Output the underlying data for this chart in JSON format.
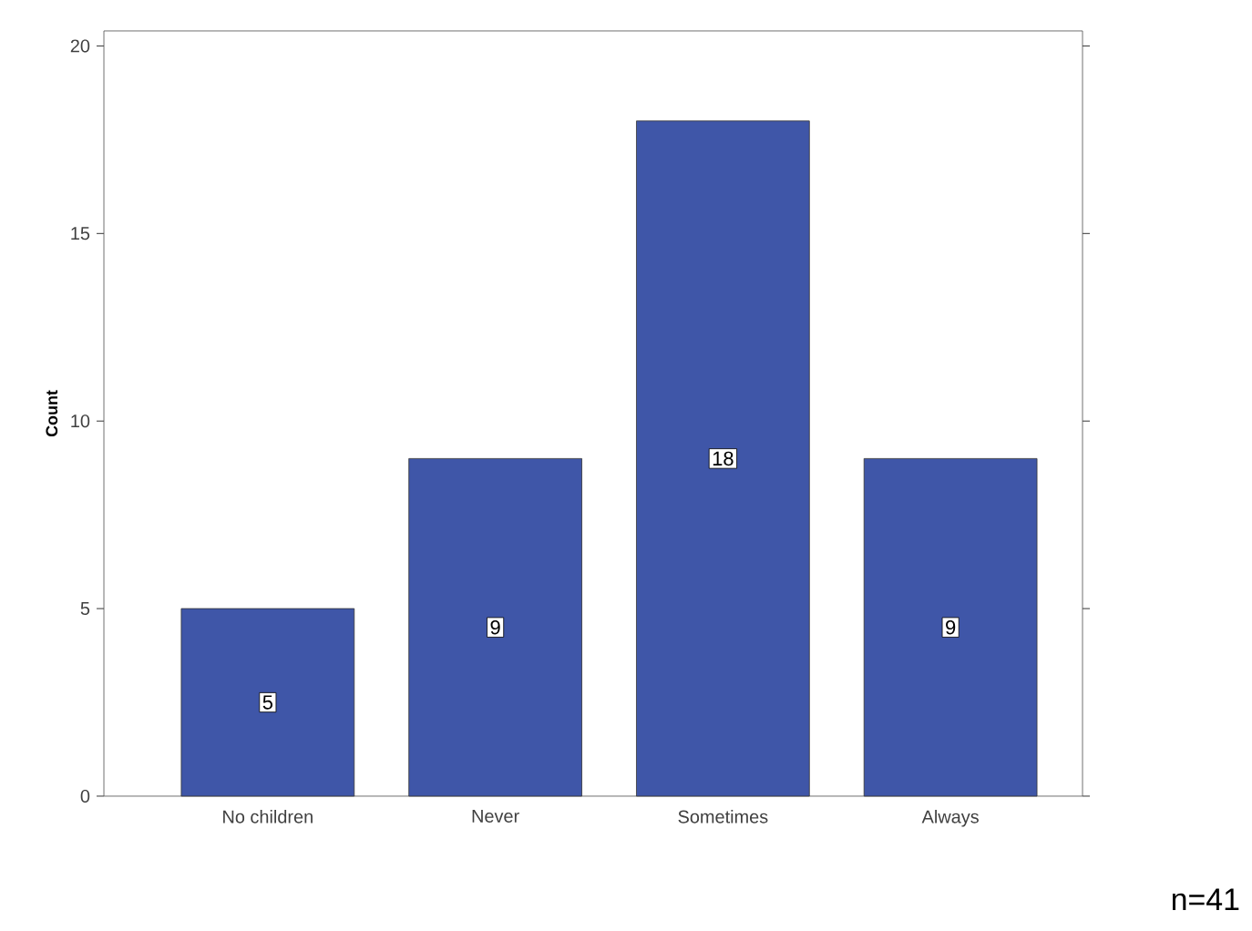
{
  "chart_data": {
    "type": "bar",
    "ylabel": "Count",
    "categories": [
      "No children",
      "Never",
      "Sometimes",
      "Always"
    ],
    "values": [
      5,
      9,
      18,
      9
    ],
    "color": "#3f56a8",
    "ylim": [
      0,
      20.4
    ],
    "yticks": [
      0,
      5,
      10,
      15,
      20
    ],
    "grid": false,
    "data_labels": true,
    "annotations": [
      "n=41"
    ]
  }
}
